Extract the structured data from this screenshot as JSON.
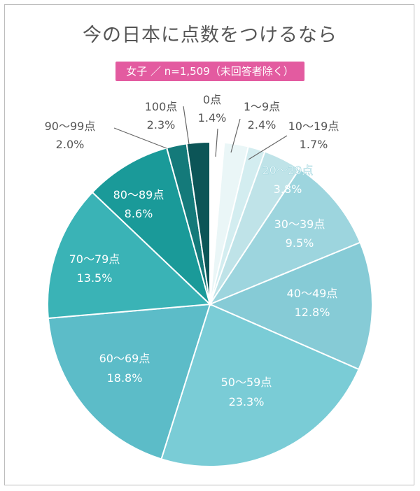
{
  "title": "今の日本に点数をつけるなら",
  "subtitle": "女子 ／ n=1,509（未回答者除く）",
  "colors": {
    "badge": "#e35ba0",
    "title": "#555555",
    "label_dark": "#555555",
    "label_light": "#ffffff"
  },
  "chart_data": {
    "type": "pie",
    "start_angle_deg": 0,
    "direction": "clockwise",
    "slices": [
      {
        "label": "0点",
        "pct_label": "1.4%",
        "value": 1.4,
        "color": "#ffffff",
        "text": "dark"
      },
      {
        "label": "1〜9点",
        "pct_label": "2.4%",
        "value": 2.4,
        "color": "#eaf6f7",
        "text": "dark"
      },
      {
        "label": "10〜19点",
        "pct_label": "1.7%",
        "value": 1.7,
        "color": "#d3edf0",
        "text": "dark"
      },
      {
        "label": "20〜29点",
        "pct_label": "3.8%",
        "value": 3.8,
        "color": "#bfe3e8",
        "text": "light"
      },
      {
        "label": "30〜39点",
        "pct_label": "9.5%",
        "value": 9.5,
        "color": "#9dd5de",
        "text": "light"
      },
      {
        "label": "40〜49点",
        "pct_label": "12.8%",
        "value": 12.8,
        "color": "#86cbd6",
        "text": "light"
      },
      {
        "label": "50〜59点",
        "pct_label": "23.3%",
        "value": 23.3,
        "color": "#7accd6",
        "text": "light"
      },
      {
        "label": "60〜69点",
        "pct_label": "18.8%",
        "value": 18.8,
        "color": "#5cbcc8",
        "text": "light"
      },
      {
        "label": "70〜79点",
        "pct_label": "13.5%",
        "value": 13.5,
        "color": "#3ab3b6",
        "text": "light"
      },
      {
        "label": "80〜89点",
        "pct_label": "8.6%",
        "value": 8.6,
        "color": "#1a9a99",
        "text": "light"
      },
      {
        "label": "90〜99点",
        "pct_label": "2.0%",
        "value": 2.0,
        "color": "#147a7a",
        "text": "dark"
      },
      {
        "label": "100点",
        "pct_label": "2.3%",
        "value": 2.3,
        "color": "#0c5557",
        "text": "dark"
      }
    ]
  }
}
